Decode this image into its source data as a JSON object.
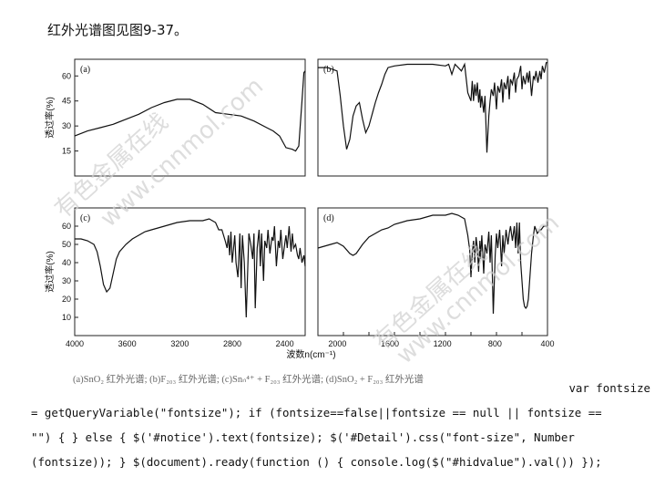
{
  "heading": "红外光谱图见图9-37。",
  "caption": "(a)SnO₂ 红外光谱; (b)F₂₀₃ 红外光谱; (c)Snₙ⁴⁺ + F₂₀₃ 红外光谱; (d)SnO₂ + F₂₀₃ 红外光谱",
  "code_lines": [
    "var fontsize",
    "= getQueryVariable(\"fontsize\"); if (fontsize==false||fontsize == null || fontsize ==",
    "\"\") { } else { $('#notice').text(fontsize); $('#Detail').css(\"font-size\", Number",
    "(fontsize)); } $(document).ready(function () { console.log($(\"#hidvalue\").val()) });"
  ],
  "watermark": [
    "有色金属在线",
    "www.cnnmol.com"
  ],
  "chart_data": [
    {
      "type": "line",
      "label": "(a)",
      "ylabel": "透过率(%)",
      "xlabel": "",
      "xlim": [
        4000,
        400
      ],
      "ylim": [
        0,
        70
      ],
      "yticks": [
        "15",
        "30",
        "45",
        "60"
      ],
      "xticks": [],
      "x": [
        4000,
        3800,
        3600,
        3400,
        3200,
        3000,
        2800,
        2600,
        2400,
        2200,
        2000,
        1800,
        1600,
        1400,
        1200,
        1000,
        900,
        800,
        700,
        600,
        550,
        500,
        450,
        420,
        400
      ],
      "y": [
        24,
        27,
        29,
        31,
        34,
        37,
        41,
        44,
        46,
        46,
        43,
        38,
        37,
        36,
        33,
        29,
        27,
        24,
        17,
        16,
        15,
        18,
        45,
        62,
        63
      ]
    },
    {
      "type": "line",
      "label": "(b)",
      "ylabel": "",
      "xlabel": "",
      "xlim": [
        4000,
        400
      ],
      "ylim": [
        0,
        70
      ],
      "yticks": [],
      "xticks": [],
      "x": [
        4000,
        3850,
        3700,
        3650,
        3600,
        3550,
        3500,
        3450,
        3400,
        3350,
        3300,
        3250,
        3200,
        3150,
        3100,
        3050,
        3000,
        2950,
        2900,
        2800,
        2600,
        2400,
        2200,
        2000,
        1950,
        1900,
        1850,
        1800,
        1750,
        1700,
        1650,
        1600,
        1580,
        1560,
        1540,
        1520,
        1500,
        1480,
        1460,
        1450,
        1430,
        1400,
        1380,
        1350,
        1320,
        1300,
        1280,
        1250,
        1230,
        1200,
        1180,
        1150,
        1120,
        1100,
        1080,
        1050,
        1020,
        1000,
        980,
        950,
        920,
        900,
        880,
        850,
        820,
        800,
        780,
        750,
        720,
        700,
        680,
        650,
        620,
        600,
        580,
        550,
        520,
        500,
        480,
        450,
        420,
        400
      ],
      "y": [
        65,
        65,
        63,
        48,
        30,
        16,
        22,
        36,
        42,
        44,
        34,
        26,
        30,
        37,
        44,
        50,
        55,
        61,
        65,
        66,
        67,
        67,
        67,
        66,
        67,
        61,
        67,
        65,
        63,
        67,
        50,
        45,
        57,
        45,
        55,
        48,
        56,
        44,
        52,
        41,
        48,
        38,
        48,
        14,
        36,
        45,
        52,
        48,
        56,
        40,
        54,
        50,
        58,
        44,
        56,
        52,
        60,
        46,
        58,
        55,
        62,
        50,
        58,
        60,
        66,
        52,
        60,
        55,
        62,
        56,
        63,
        48,
        60,
        58,
        63,
        56,
        63,
        58,
        66,
        62,
        68,
        68
      ]
    },
    {
      "type": "line",
      "label": "(c)",
      "ylabel": "透过率(%)",
      "xlabel": "",
      "xlim": [
        4000,
        400
      ],
      "ylim": [
        0,
        70
      ],
      "yticks": [
        "10",
        "20",
        "30",
        "40",
        "50",
        "60"
      ],
      "xticks": [],
      "x": [
        4000,
        3900,
        3800,
        3700,
        3650,
        3600,
        3550,
        3500,
        3450,
        3400,
        3350,
        3300,
        3250,
        3200,
        3100,
        3000,
        2900,
        2800,
        2700,
        2600,
        2400,
        2200,
        2000,
        1900,
        1800,
        1750,
        1700,
        1650,
        1620,
        1600,
        1580,
        1560,
        1540,
        1500,
        1480,
        1450,
        1420,
        1400,
        1380,
        1350,
        1320,
        1300,
        1280,
        1250,
        1220,
        1200,
        1180,
        1150,
        1120,
        1100,
        1080,
        1050,
        1030,
        1000,
        980,
        950,
        920,
        900,
        880,
        850,
        820,
        800,
        780,
        750,
        720,
        700,
        680,
        650,
        620,
        600,
        580,
        550,
        520,
        500,
        480,
        450,
        420,
        400
      ],
      "y": [
        53,
        53,
        52,
        50,
        46,
        38,
        28,
        24,
        26,
        34,
        42,
        46,
        48,
        50,
        53,
        55,
        57,
        58,
        59,
        60,
        62,
        63,
        63,
        64,
        62,
        58,
        58,
        52,
        48,
        55,
        44,
        57,
        40,
        55,
        40,
        32,
        56,
        26,
        55,
        40,
        10,
        34,
        56,
        50,
        42,
        56,
        15,
        48,
        58,
        38,
        56,
        30,
        52,
        48,
        58,
        45,
        54,
        52,
        60,
        38,
        52,
        48,
        58,
        42,
        50,
        55,
        48,
        60,
        46,
        56,
        48,
        50,
        44,
        42,
        48,
        40,
        44,
        38
      ]
    },
    {
      "type": "line",
      "label": "(d)",
      "ylabel": "",
      "xlabel": "波数n(cm⁻¹)",
      "xlim": [
        4000,
        400
      ],
      "ylim": [
        0,
        70
      ],
      "yticks": [],
      "xticks": [
        "4000",
        "3600",
        "3200",
        "2800",
        "2400",
        "2000",
        "1600",
        "1200",
        "800",
        "400"
      ],
      "x": [
        4000,
        3900,
        3800,
        3700,
        3600,
        3500,
        3450,
        3400,
        3300,
        3200,
        3100,
        3000,
        2900,
        2800,
        2600,
        2400,
        2200,
        2000,
        1900,
        1800,
        1700,
        1650,
        1620,
        1600,
        1580,
        1560,
        1540,
        1520,
        1500,
        1480,
        1460,
        1450,
        1430,
        1400,
        1380,
        1350,
        1320,
        1300,
        1280,
        1250,
        1220,
        1200,
        1180,
        1150,
        1120,
        1100,
        1080,
        1050,
        1020,
        1000,
        980,
        950,
        920,
        900,
        880,
        860,
        840,
        820,
        800,
        780,
        760,
        740,
        720,
        700,
        680,
        650,
        620,
        600,
        580,
        560,
        540,
        520,
        500,
        480,
        460,
        440,
        420,
        400
      ],
      "y": [
        48,
        49,
        50,
        51,
        49,
        45,
        44,
        45,
        50,
        54,
        56,
        58,
        59,
        61,
        63,
        64,
        66,
        66,
        67,
        66,
        64,
        55,
        47,
        32,
        45,
        52,
        40,
        54,
        48,
        35,
        52,
        42,
        55,
        34,
        50,
        45,
        57,
        40,
        55,
        12,
        44,
        56,
        48,
        58,
        38,
        55,
        45,
        58,
        50,
        56,
        60,
        52,
        60,
        48,
        62,
        45,
        62,
        40,
        30,
        20,
        16,
        15,
        16,
        20,
        30,
        45,
        55,
        60,
        58,
        56,
        57,
        58,
        58,
        59,
        60,
        60,
        60,
        60
      ]
    }
  ]
}
